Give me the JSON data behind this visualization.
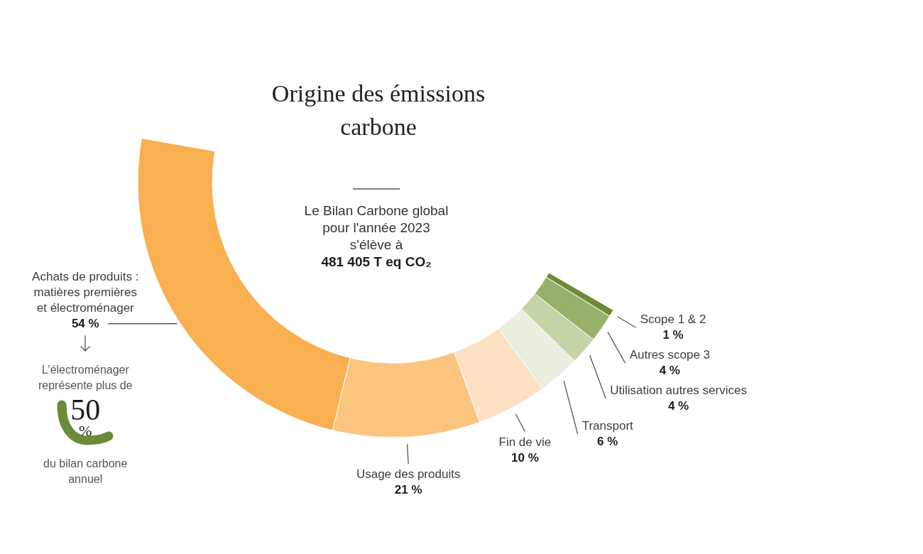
{
  "chart_data": {
    "type": "donut",
    "title": "Origine des émissions carbone",
    "categories": [
      "Achats de produits : matières premières et électroménager",
      "Usage des produits",
      "Fin de vie",
      "Transport",
      "Utilisation autres services",
      "Autres scope 3",
      "Scope 1 & 2"
    ],
    "values": [
      54,
      21,
      10,
      6,
      4,
      4,
      1
    ],
    "value_labels": [
      "54 %",
      "21 %",
      "10 %",
      "6 %",
      "4 %",
      "4 %",
      "1 %"
    ],
    "colors": [
      "#f9b050",
      "#fbc57f",
      "#fde1c3",
      "#eaf0df",
      "#c4d4a7",
      "#99b06a",
      "#6e8a36"
    ],
    "annotations": [
      "Le Bilan Carbone global pour l'année 2023 s'élève à",
      "481 405 T eq CO₂",
      "L'électroménager représente plus de",
      "50 %",
      "du bilan carbone annuel"
    ]
  }
}
